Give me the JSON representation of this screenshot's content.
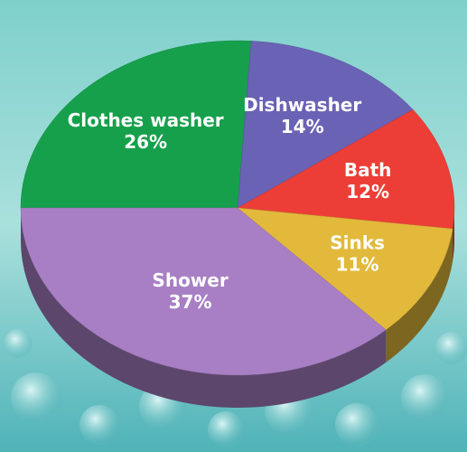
{
  "chart_data": {
    "type": "pie",
    "categories": [
      "Clothes washer",
      "Dishwasher",
      "Bath",
      "Sinks",
      "Shower"
    ],
    "values": [
      26,
      14,
      12,
      11,
      37
    ],
    "value_labels": [
      "26%",
      "14%",
      "12%",
      "11%",
      "37%"
    ],
    "colors": [
      "#16a04c",
      "#6a62b4",
      "#ec3e36",
      "#e2b93a",
      "#a87fc4"
    ]
  }
}
